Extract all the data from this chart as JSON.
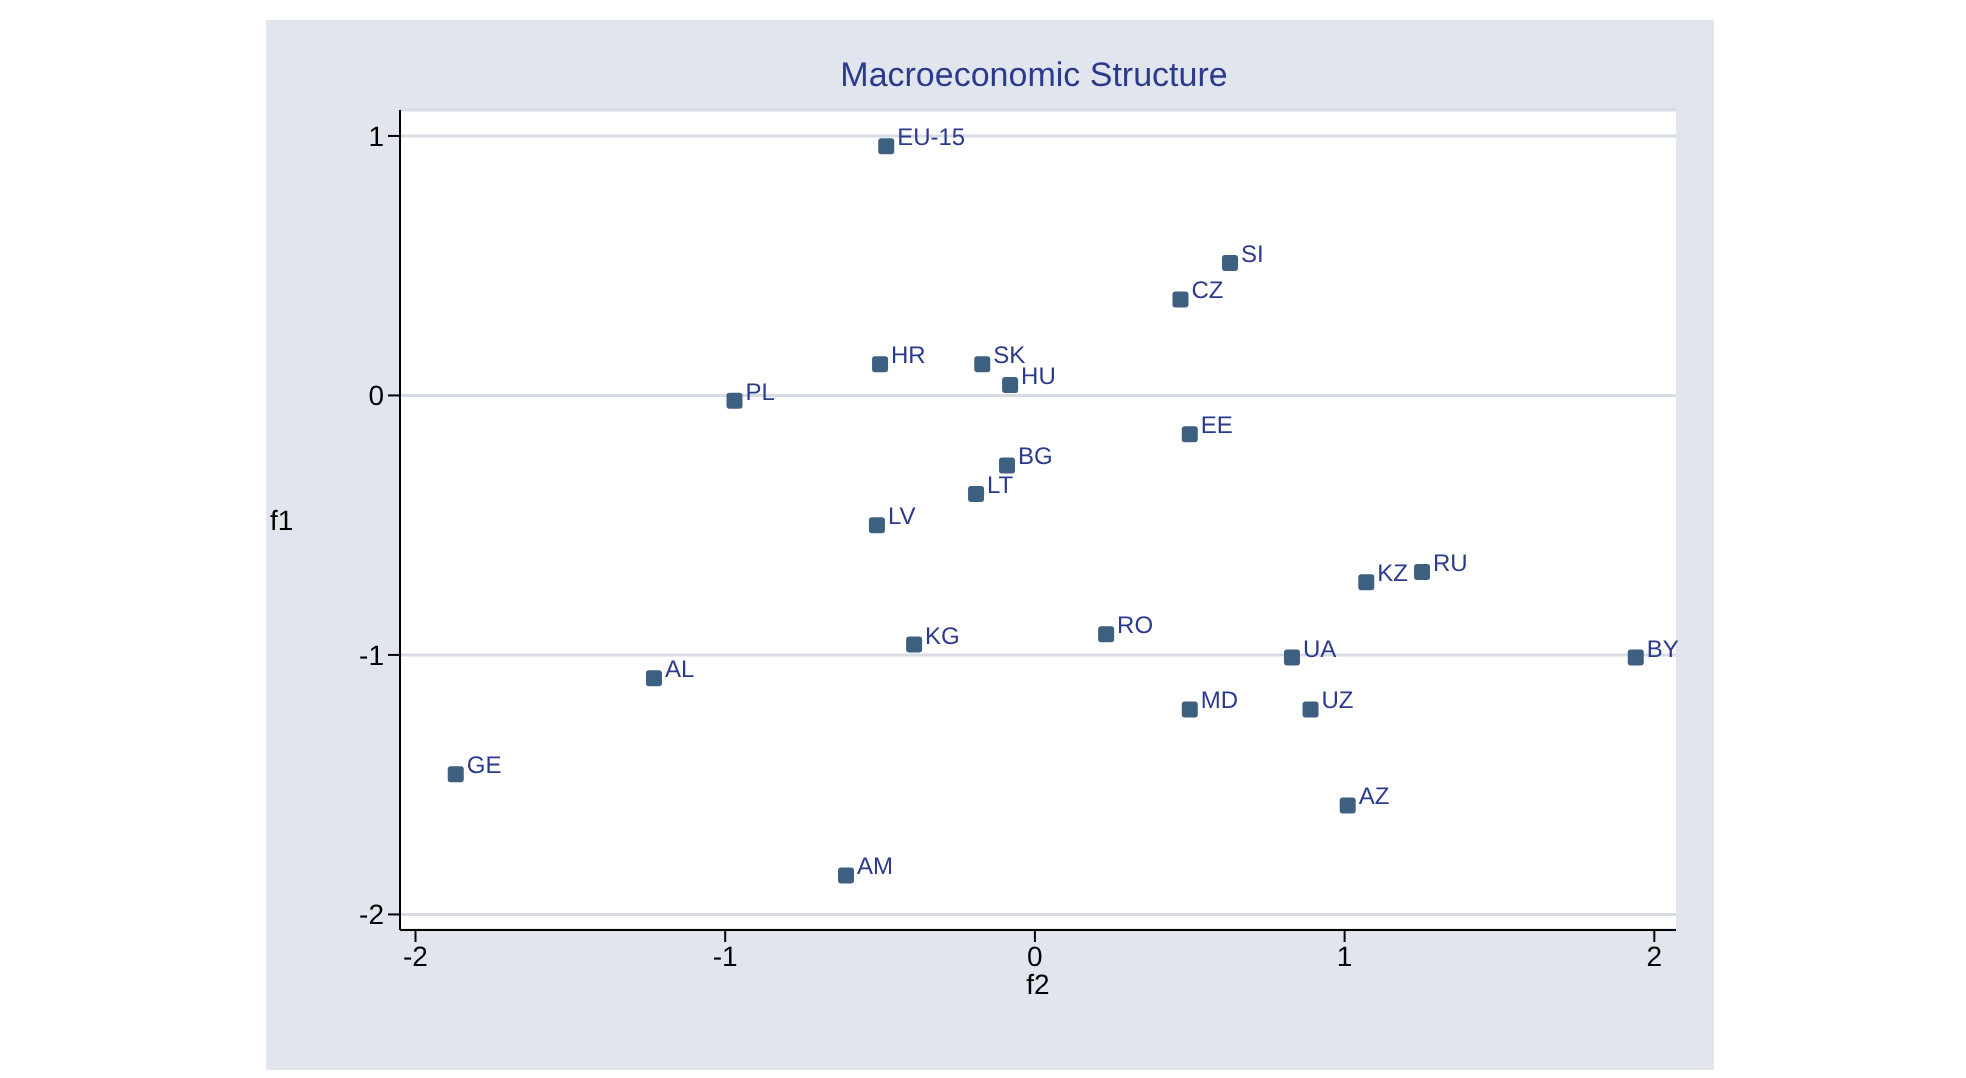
{
  "chart_data": {
    "type": "scatter",
    "title": "Macroeconomic Structure",
    "xlabel": "f2",
    "ylabel": "f1",
    "xlim": [
      -2.05,
      2.07
    ],
    "ylim": [
      -2.06,
      1.1
    ],
    "xticks": [
      -2,
      -1,
      0,
      1,
      2
    ],
    "yticks": [
      -2,
      -1,
      0,
      1
    ],
    "grid": "y",
    "marker": "square",
    "series": [
      {
        "name": "EU-15",
        "color": "#3d5f80",
        "x": [
          -0.48
        ],
        "values": [
          0.96
        ]
      },
      {
        "name": "SI",
        "color": "#3d5f80",
        "x": [
          0.63
        ],
        "values": [
          0.51
        ]
      },
      {
        "name": "CZ",
        "color": "#3d5f80",
        "x": [
          0.47
        ],
        "values": [
          0.37
        ]
      },
      {
        "name": "HR",
        "color": "#3d5f80",
        "x": [
          -0.5
        ],
        "values": [
          0.12
        ]
      },
      {
        "name": "SK",
        "color": "#3d5f80",
        "x": [
          -0.17
        ],
        "values": [
          0.12
        ]
      },
      {
        "name": "HU",
        "color": "#3d5f80",
        "x": [
          -0.08
        ],
        "values": [
          0.04
        ]
      },
      {
        "name": "PL",
        "color": "#3d5f80",
        "x": [
          -0.97
        ],
        "values": [
          -0.02
        ]
      },
      {
        "name": "EE",
        "color": "#3d5f80",
        "x": [
          0.5
        ],
        "values": [
          -0.15
        ]
      },
      {
        "name": "BG",
        "color": "#3d5f80",
        "x": [
          -0.09
        ],
        "values": [
          -0.27
        ]
      },
      {
        "name": "LT",
        "color": "#3d5f80",
        "x": [
          -0.19
        ],
        "values": [
          -0.38
        ]
      },
      {
        "name": "LV",
        "color": "#3d5f80",
        "x": [
          -0.51
        ],
        "values": [
          -0.5
        ]
      },
      {
        "name": "RU",
        "color": "#3d5f80",
        "x": [
          1.25
        ],
        "values": [
          -0.68
        ]
      },
      {
        "name": "KZ",
        "color": "#3d5f80",
        "x": [
          1.07
        ],
        "values": [
          -0.72
        ]
      },
      {
        "name": "RO",
        "color": "#3d5f80",
        "x": [
          0.23
        ],
        "values": [
          -0.92
        ]
      },
      {
        "name": "KG",
        "color": "#3d5f80",
        "x": [
          -0.39
        ],
        "values": [
          -0.96
        ]
      },
      {
        "name": "UA",
        "color": "#3d5f80",
        "x": [
          0.83
        ],
        "values": [
          -1.01
        ]
      },
      {
        "name": "BY",
        "color": "#3d5f80",
        "x": [
          1.94
        ],
        "values": [
          -1.01
        ]
      },
      {
        "name": "AL",
        "color": "#3d5f80",
        "x": [
          -1.23
        ],
        "values": [
          -1.09
        ]
      },
      {
        "name": "MD",
        "color": "#3d5f80",
        "x": [
          0.5
        ],
        "values": [
          -1.21
        ]
      },
      {
        "name": "UZ",
        "color": "#3d5f80",
        "x": [
          0.89
        ],
        "values": [
          -1.21
        ]
      },
      {
        "name": "GE",
        "color": "#3d5f80",
        "x": [
          -1.87
        ],
        "values": [
          -1.46
        ]
      },
      {
        "name": "AZ",
        "color": "#3d5f80",
        "x": [
          1.01
        ],
        "values": [
          -1.58
        ]
      },
      {
        "name": "AM",
        "color": "#3d5f80",
        "x": [
          -0.61
        ],
        "values": [
          -1.85
        ]
      }
    ]
  }
}
